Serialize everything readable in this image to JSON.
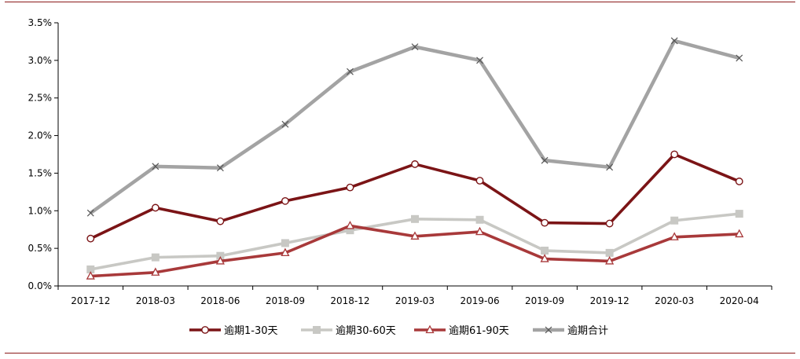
{
  "chart_data": {
    "type": "line",
    "title": "",
    "xlabel": "",
    "ylabel": "",
    "categories": [
      "2017-12",
      "2018-03",
      "2018-06",
      "2018-09",
      "2018-12",
      "2019-03",
      "2019-06",
      "2019-09",
      "2019-12",
      "2020-03",
      "2020-04"
    ],
    "ylim": [
      0,
      0.035
    ],
    "yticks": [
      "0.0%",
      "0.5%",
      "1.0%",
      "1.5%",
      "2.0%",
      "2.5%",
      "3.0%",
      "3.5%"
    ],
    "grid": false,
    "legend_position": "bottom",
    "series": [
      {
        "name": "逾期1-30天",
        "color": "#7b1416",
        "marker": "circle",
        "values": [
          0.0063,
          0.0104,
          0.0086,
          0.0113,
          0.0131,
          0.0162,
          0.014,
          0.0084,
          0.0083,
          0.0175,
          0.0139
        ]
      },
      {
        "name": "逾期30-60天",
        "color": "#c8c8c4",
        "marker": "square",
        "values": [
          0.0022,
          0.0038,
          0.004,
          0.0057,
          0.0074,
          0.0089,
          0.0088,
          0.0047,
          0.0044,
          0.0087,
          0.0096
        ]
      },
      {
        "name": "逾期61-90天",
        "color": "#a8393a",
        "marker": "triangle",
        "values": [
          0.0013,
          0.0018,
          0.0033,
          0.0044,
          0.008,
          0.0066,
          0.0072,
          0.0036,
          0.0033,
          0.0065,
          0.0069
        ]
      },
      {
        "name": "逾期合计",
        "color": "#a3a3a3",
        "marker": "x",
        "values": [
          0.0097,
          0.0159,
          0.0157,
          0.0215,
          0.0285,
          0.0318,
          0.03,
          0.0167,
          0.0158,
          0.0326,
          0.0303
        ]
      }
    ]
  }
}
